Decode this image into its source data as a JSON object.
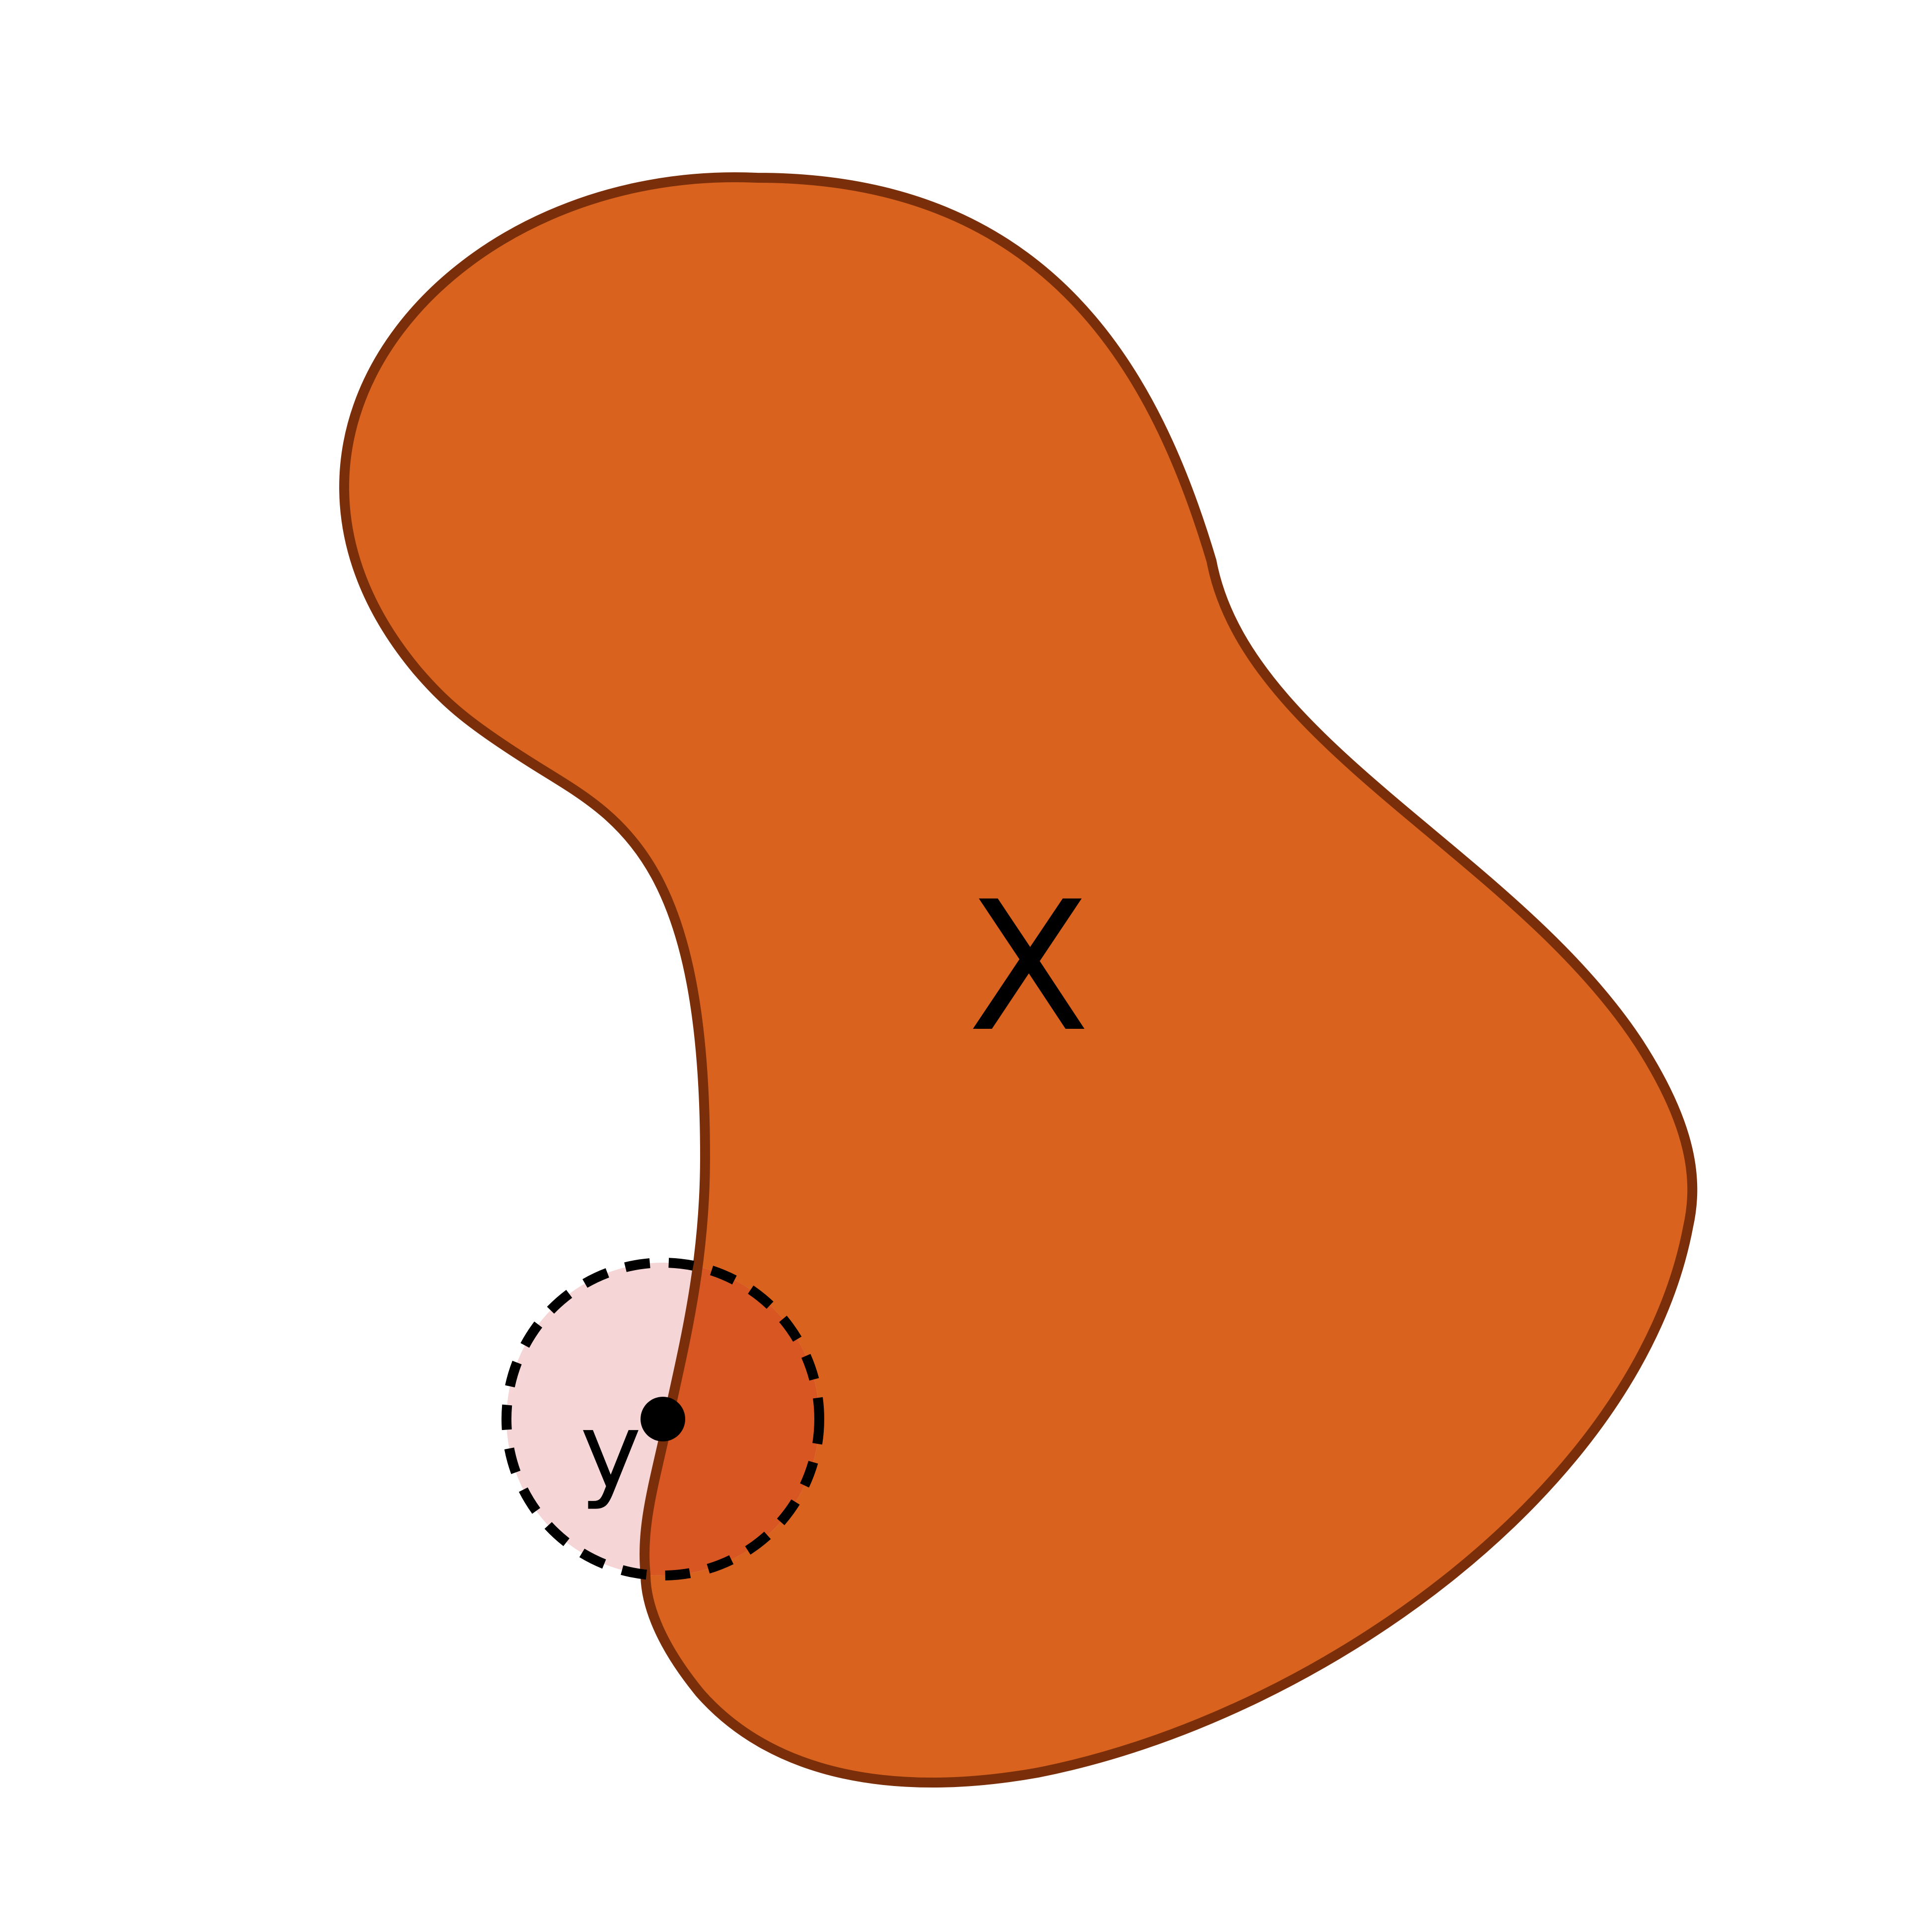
{
  "diagram": {
    "region_label": "X",
    "point_label": "y"
  },
  "colors": {
    "background": "#ffffff",
    "region_fill": "#d9631e",
    "region_outline": "#7a2f0a",
    "neighborhood_outside_fill": "#f5d5d5",
    "neighborhood_inside_fill": "#d85622",
    "neighborhood_border": "#000000",
    "point": "#000000"
  }
}
